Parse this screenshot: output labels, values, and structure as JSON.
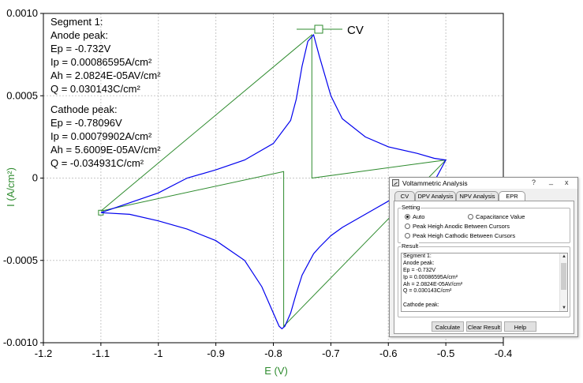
{
  "chart_data": {
    "type": "line",
    "xlabel": "E (V)",
    "ylabel": "I (A/cm²)",
    "xlim": [
      -1.2,
      -0.4
    ],
    "ylim": [
      -0.001,
      0.001
    ],
    "x_ticks": [
      "-1.2",
      "-1.1",
      "-1",
      "-0.9",
      "-0.8",
      "-0.7",
      "-0.6",
      "-0.5",
      "-0.4"
    ],
    "y_ticks": [
      "-0.0010",
      "-0.0005",
      "0",
      "0.0005",
      "0.0010"
    ],
    "legend": "top-center",
    "grid": true,
    "series": [
      {
        "name": "CV",
        "color": "#0000ee",
        "x": [
          -1.1,
          -1.05,
          -1.0,
          -0.95,
          -0.9,
          -0.85,
          -0.82,
          -0.8,
          -0.79,
          -0.785,
          -0.78,
          -0.77,
          -0.76,
          -0.75,
          -0.73,
          -0.72,
          -0.7,
          -0.68,
          -0.65,
          -0.62,
          -0.6,
          -0.55,
          -0.52,
          -0.5,
          -0.52,
          -0.55,
          -0.6,
          -0.64,
          -0.68,
          -0.7,
          -0.72,
          -0.73,
          -0.74,
          -0.75,
          -0.76,
          -0.77,
          -0.8,
          -0.85,
          -0.9,
          -0.95,
          -1.0,
          -1.05,
          -1.1
        ],
        "y": [
          -0.00021,
          -0.00022,
          -0.00026,
          -0.00031,
          -0.00038,
          -0.0005,
          -0.00066,
          -0.00082,
          -0.0009,
          -0.000915,
          -0.0009,
          -0.00082,
          -0.0007,
          -0.00059,
          -0.00046,
          -0.00042,
          -0.00035,
          -0.0003,
          -0.00024,
          -0.00018,
          -0.00014,
          -6e-05,
          -2e-05,
          0.00011,
          0.00012,
          0.00015,
          0.00019,
          0.00025,
          0.00036,
          0.0005,
          0.00074,
          0.00087,
          0.00083,
          0.00068,
          0.00048,
          0.00035,
          0.00021,
          0.00011,
          5e-05,
          0.0,
          -9e-05,
          -0.00015,
          -0.00021
        ]
      }
    ],
    "baseline": {
      "color": "#2e8b2e",
      "x": [
        -1.1,
        -0.782,
        -0.782,
        -0.5,
        -0.733,
        -0.733,
        -1.1
      ],
      "y": [
        -0.0002,
        4e-05,
        -0.0009,
        0.00011,
        0.0,
        0.00087,
        -0.0002
      ]
    }
  },
  "annotation": {
    "segment": "Segment 1:",
    "anode_title": "Anode peak:",
    "anode_ep": "Ep = -0.732V",
    "anode_ip": "Ip = 0.00086595A/cm²",
    "anode_ah": "Ah = 2.0824E-05AV/cm²",
    "anode_q": "Q = 0.030143C/cm²",
    "cathode_title": "Cathode peak:",
    "cathode_ep": "Ep = -0.78096V",
    "cathode_ip": "Ip = 0.00079902A/cm²",
    "cathode_ah": "Ah = 5.6009E-05AV/cm²",
    "cathode_q": "Q = -0.034931C/cm²"
  },
  "dialog": {
    "title": "Voltammetric Analysis",
    "help_glyph": "?",
    "minimize_glyph": "_",
    "close_glyph": "x",
    "tabs": [
      "CV",
      "DPV Analysis",
      "NPV Analysis",
      "EPR"
    ],
    "active_tab": "EPR",
    "setting_label": "Setting",
    "options": {
      "auto": "Auto",
      "capacitance": "Capacitance Value",
      "anodic": "Peak Heigh Anodic Between Cursors",
      "cathodic": "Peak Heigh Cathodic Between Cursors"
    },
    "selected_option": "Auto",
    "result_label": "Result",
    "result_lines": [
      "Segment 1:",
      "Anode peak:",
      "Ep = -0.732V",
      "Ip = 0.00086595A/cm²",
      "Ah = 2.0824E-05AV/cm²",
      "Q = 0.030143C/cm²",
      "",
      "Cathode peak:"
    ],
    "buttons": {
      "calculate": "Calculate",
      "clear": "Clear Result",
      "help": "Help"
    }
  }
}
